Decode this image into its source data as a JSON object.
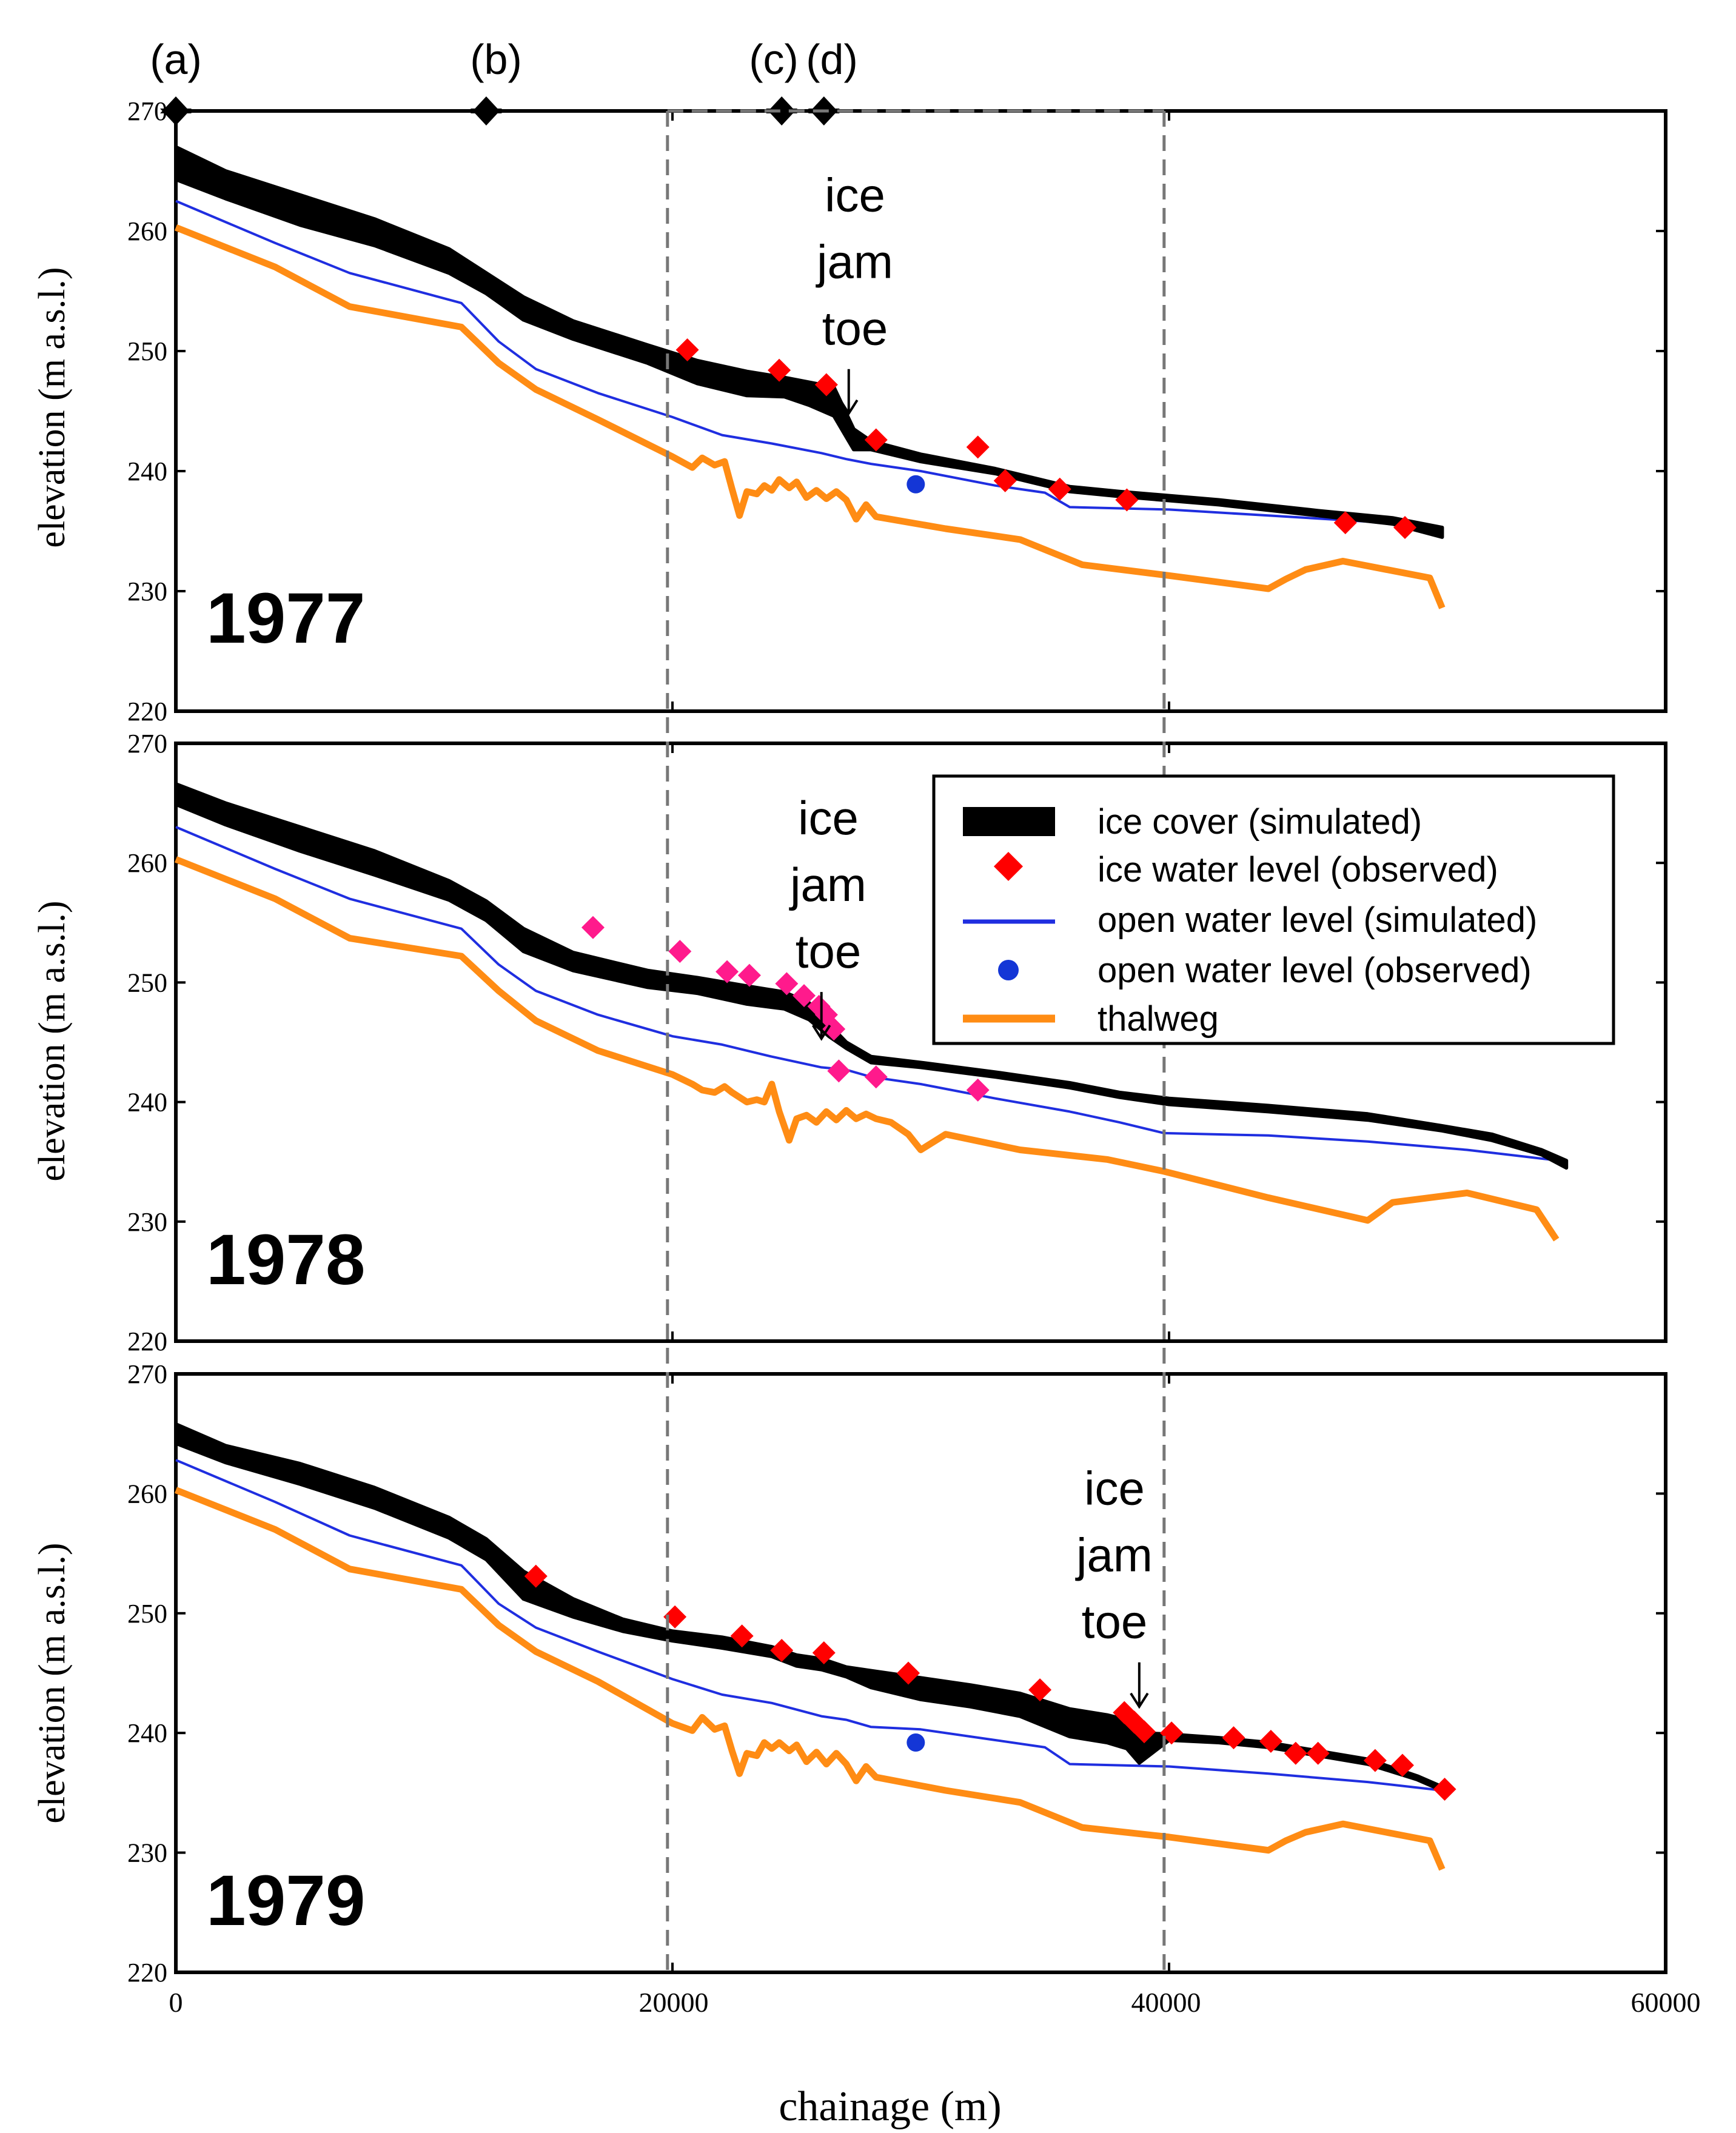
{
  "colors": {
    "ice_cover": "#000000",
    "ice_obs_1977": "#ff0000",
    "ice_obs_1978": "#ff1a8c",
    "ice_obs_1979": "#ff0000",
    "open_sim": "#1f2ee0",
    "open_obs": "#1436d6",
    "thalweg": "#ff8c14",
    "frame": "#000000",
    "box": "#777777"
  },
  "chart_data": {
    "type": "line",
    "xlabel": "chainage (m)",
    "ylabel": "elevation (m a.s.l.)",
    "xlim": [
      0,
      60000
    ],
    "ylim": [
      220,
      270
    ],
    "x_ticks": [
      "0",
      "20000",
      "40000",
      "60000"
    ],
    "x_tick_values": [
      0,
      20000,
      40000,
      60000
    ],
    "y_ticks": [
      "270",
      "260",
      "250",
      "240",
      "230",
      "220"
    ],
    "y_tick_values": [
      270,
      260,
      250,
      240,
      230,
      220
    ],
    "location_markers": [
      {
        "label": "(a)",
        "x": 0
      },
      {
        "label": "(b)",
        "x": 12500
      },
      {
        "label": "(c)",
        "x": 24400
      },
      {
        "label": "(d)",
        "x": 26100
      }
    ],
    "box_region": {
      "x_range": [
        19800,
        39800
      ],
      "label": ""
    },
    "legend": {
      "placement": "middle-right",
      "entries": [
        "ice cover (simulated)",
        "ice water level (observed)",
        "open water level (simulated)",
        "open water level (observed)",
        "thalweg"
      ]
    },
    "panels": [
      {
        "year": "1977",
        "annotation": {
          "text": [
            "ice",
            "jam",
            "toe"
          ],
          "arrow_x": 27100,
          "arrow_y_top": 248.5,
          "arrow_y_bottom": 244.8
        },
        "ice_cover": {
          "x": [
            0,
            2000,
            5000,
            8000,
            11000,
            12500,
            14000,
            16000,
            19000,
            21000,
            23000,
            24500,
            25500,
            26500,
            27300,
            28000,
            30000,
            33000,
            36000,
            38000,
            42000,
            46000,
            49000,
            51000
          ],
          "upper": [
            267,
            265,
            263,
            261,
            258.5,
            256.5,
            254.5,
            252.5,
            250.5,
            249.2,
            248.3,
            247.8,
            247.4,
            247,
            243.5,
            242.5,
            241.4,
            240.2,
            238.7,
            238.3,
            237.6,
            236.7,
            236.1,
            235.3
          ],
          "lower": [
            264.3,
            262.7,
            260.5,
            258.8,
            256.5,
            254.8,
            252.6,
            251,
            249,
            247.3,
            246.3,
            246.2,
            245.5,
            244.6,
            241.8,
            241.8,
            240.8,
            239.8,
            238.3,
            237.9,
            237.2,
            236.3,
            235.6,
            234.5
          ]
        },
        "ice_water_observed": {
          "x": [
            20600,
            24300,
            26200,
            28200,
            32300,
            33400,
            35600,
            38300,
            47100,
            49500
          ],
          "y": [
            250.1,
            248.4,
            247.2,
            242.6,
            242.0,
            239.2,
            238.5,
            237.6,
            235.7,
            235.3
          ]
        },
        "open_water_simulated": {
          "x": [
            0,
            4000,
            7000,
            11500,
            13000,
            14500,
            17000,
            20000,
            22000,
            24000,
            26000,
            27000,
            28000,
            30000,
            33000,
            35000,
            36000,
            40000,
            44000,
            48000,
            51000
          ],
          "y": [
            262.5,
            259,
            256.5,
            254,
            250.8,
            248.5,
            246.5,
            244.5,
            243,
            242.3,
            241.5,
            241,
            240.6,
            240,
            238.8,
            238.2,
            237,
            236.8,
            236.3,
            235.8,
            235.1
          ]
        },
        "open_water_observed": {
          "x": [
            29800
          ],
          "y": [
            238.9
          ]
        },
        "thalweg": {
          "x": [
            0,
            4000,
            7000,
            11500,
            13000,
            14500,
            17000,
            20000,
            20800,
            21200,
            21700,
            22100,
            22400,
            22700,
            23000,
            23400,
            23700,
            24000,
            24300,
            24700,
            25000,
            25400,
            25800,
            26200,
            26600,
            27000,
            27400,
            27800,
            28200,
            31000,
            34000,
            36500,
            40000,
            44000,
            44700,
            45500,
            47000,
            50500,
            51000
          ],
          "y": [
            260.3,
            257,
            253.7,
            252,
            249,
            246.8,
            244.3,
            241.2,
            240.3,
            241.1,
            240.5,
            240.8,
            238.5,
            236.3,
            238.3,
            238.1,
            238.8,
            238.4,
            239.3,
            238.6,
            239.1,
            237.8,
            238.4,
            237.7,
            238.3,
            237.6,
            236,
            237.2,
            236.2,
            235.2,
            234.3,
            232.2,
            231.3,
            230.2,
            231,
            231.8,
            232.5,
            231.1,
            228.6
          ]
        }
      },
      {
        "year": "1978",
        "annotation": {
          "text": [
            "ice",
            "jam",
            "toe"
          ],
          "arrow_x": 26000,
          "arrow_y_top": 249.2,
          "arrow_y_bottom": 245.3
        },
        "ice_cover": {
          "x": [
            0,
            2000,
            5000,
            8000,
            11000,
            12500,
            14000,
            16000,
            19000,
            21000,
            23000,
            24500,
            25500,
            26300,
            27000,
            28000,
            30000,
            33000,
            36000,
            38000,
            40000,
            44000,
            48000,
            51000,
            53000,
            55000,
            56000
          ],
          "upper": [
            266.6,
            265,
            263,
            261,
            258.5,
            256.8,
            254.5,
            252.5,
            251,
            250.4,
            249.7,
            249.2,
            248.3,
            246.5,
            245,
            243.8,
            243.3,
            242.5,
            241.6,
            240.8,
            240.3,
            239.7,
            239,
            238,
            237.3,
            236,
            235.1
          ],
          "lower": [
            264.9,
            263.2,
            261,
            259,
            256.9,
            255.2,
            252.6,
            251,
            249.6,
            249.1,
            248.2,
            247.8,
            246.9,
            245.5,
            244.5,
            243.3,
            242.9,
            242.1,
            241.2,
            240.4,
            239.8,
            239.2,
            238.5,
            237.6,
            236.8,
            235.6,
            234.5
          ]
        },
        "ice_water_observed": {
          "x": [
            16800,
            20300,
            22200,
            23100,
            24600,
            25300,
            25900,
            26200,
            26500,
            26700,
            28200,
            32300
          ],
          "y": [
            254.6,
            252.6,
            250.9,
            250.6,
            249.9,
            248.9,
            248.0,
            247.3,
            246.1,
            242.6,
            242.1,
            241.0
          ]
        },
        "open_water_simulated": {
          "x": [
            0,
            4000,
            7000,
            11500,
            13000,
            14500,
            17000,
            20000,
            22000,
            24000,
            26000,
            27000,
            28000,
            30000,
            33000,
            36000,
            38000,
            39800,
            44000,
            48000,
            52000,
            55700
          ],
          "y": [
            263,
            259.5,
            257,
            254.5,
            251.5,
            249.3,
            247.3,
            245.5,
            244.8,
            243.8,
            242.9,
            242.7,
            242.1,
            241.5,
            240.3,
            239.2,
            238.3,
            237.4,
            237.2,
            236.7,
            236,
            235.1
          ]
        },
        "open_water_observed": {
          "x": [],
          "y": []
        },
        "thalweg": {
          "x": [
            0,
            4000,
            7000,
            11500,
            13000,
            14500,
            17000,
            20000,
            20800,
            21200,
            21700,
            22100,
            22400,
            22700,
            23000,
            23400,
            23700,
            24000,
            24300,
            24700,
            25000,
            25400,
            25800,
            26200,
            26600,
            27000,
            27400,
            27800,
            28200,
            28800,
            29500,
            30000,
            31000,
            34000,
            37500,
            39800,
            44000,
            48000,
            49000,
            52000,
            54800,
            55600
          ],
          "y": [
            260.3,
            257,
            253.7,
            252.2,
            249.3,
            246.8,
            244.3,
            242.3,
            241.5,
            241,
            240.8,
            241.3,
            240.8,
            240.4,
            240,
            240.2,
            240,
            241.5,
            239.2,
            236.8,
            238.6,
            238.9,
            238.3,
            239.2,
            238.5,
            239.3,
            238.6,
            239,
            238.6,
            238.3,
            237.3,
            236,
            237.3,
            236,
            235.2,
            234.2,
            232,
            230.1,
            231.6,
            232.4,
            231,
            228.5
          ]
        }
      },
      {
        "year": "1979",
        "annotation": {
          "text": [
            "ice",
            "jam",
            "toe"
          ],
          "arrow_x": 38800,
          "arrow_y_top": 245.9,
          "arrow_y_bottom": 242.2
        },
        "ice_cover": {
          "x": [
            0,
            2000,
            5000,
            8000,
            11000,
            12500,
            14000,
            16000,
            18000,
            20000,
            22000,
            24000,
            25000,
            26000,
            27000,
            28000,
            30000,
            32000,
            34000,
            36000,
            37500,
            38300,
            38800,
            40000,
            42000,
            44000,
            46000,
            48000,
            50000,
            51000
          ],
          "upper": [
            265.8,
            264,
            262.5,
            260.5,
            258,
            256.2,
            253.5,
            251.2,
            249.5,
            248.5,
            248,
            247.2,
            246.5,
            246.2,
            245.5,
            245.2,
            244.6,
            244,
            243.3,
            242,
            241.5,
            241.1,
            240,
            239.9,
            239.6,
            239.2,
            238.5,
            237.8,
            236.4,
            235.5
          ],
          "lower": [
            264.2,
            262.6,
            260.8,
            258.8,
            256.3,
            254.5,
            251.2,
            249.7,
            248.5,
            247.7,
            247.1,
            246.4,
            245.6,
            245.3,
            244.7,
            243.8,
            242.8,
            242.2,
            241.4,
            239.7,
            239.2,
            238.7,
            237.5,
            239.4,
            239.2,
            238.8,
            238.1,
            237.4,
            236.1,
            235.2
          ]
        },
        "ice_water_observed": {
          "x": [
            14500,
            20100,
            22800,
            24400,
            26100,
            29500,
            34800,
            38200,
            38600,
            39000,
            40100,
            42600,
            44100,
            45100,
            46000,
            48300,
            49400,
            51100
          ],
          "y": [
            253.1,
            249.7,
            248.1,
            246.9,
            246.7,
            245.0,
            243.6,
            241.7,
            240.9,
            240.1,
            240.0,
            239.6,
            239.3,
            238.3,
            238.3,
            237.7,
            237.3,
            235.3
          ]
        },
        "open_water_simulated": {
          "x": [
            0,
            4000,
            7000,
            11500,
            13000,
            14500,
            17000,
            20000,
            22000,
            24000,
            26000,
            27000,
            28000,
            30000,
            33000,
            35000,
            36000,
            40000,
            44000,
            48000,
            51000
          ],
          "y": [
            262.8,
            259.3,
            256.5,
            254,
            250.8,
            248.8,
            246.8,
            244.5,
            243.2,
            242.5,
            241.4,
            241.1,
            240.5,
            240.3,
            239.4,
            238.8,
            237.4,
            237.2,
            236.6,
            235.9,
            235.2
          ]
        },
        "open_water_observed": {
          "x": [
            29800
          ],
          "y": [
            239.2
          ]
        },
        "thalweg": {
          "x": [
            0,
            4000,
            7000,
            11500,
            13000,
            14500,
            17000,
            20000,
            20800,
            21200,
            21700,
            22100,
            22400,
            22700,
            23000,
            23400,
            23700,
            24000,
            24300,
            24700,
            25000,
            25400,
            25800,
            26200,
            26600,
            27000,
            27400,
            27800,
            28200,
            31000,
            34000,
            36500,
            40000,
            44000,
            44700,
            45500,
            47000,
            50500,
            51000
          ],
          "y": [
            260.3,
            257,
            253.7,
            252,
            249,
            246.8,
            244.3,
            240.8,
            240.2,
            241.3,
            240.3,
            240.6,
            238.5,
            236.6,
            238.3,
            238.1,
            239.2,
            238.7,
            239.2,
            238.5,
            239,
            237.6,
            238.4,
            237.4,
            238.3,
            237.4,
            236,
            237.2,
            236.3,
            235.2,
            234.2,
            232.1,
            231.3,
            230.2,
            231,
            231.7,
            232.4,
            231,
            228.6
          ]
        }
      }
    ]
  }
}
